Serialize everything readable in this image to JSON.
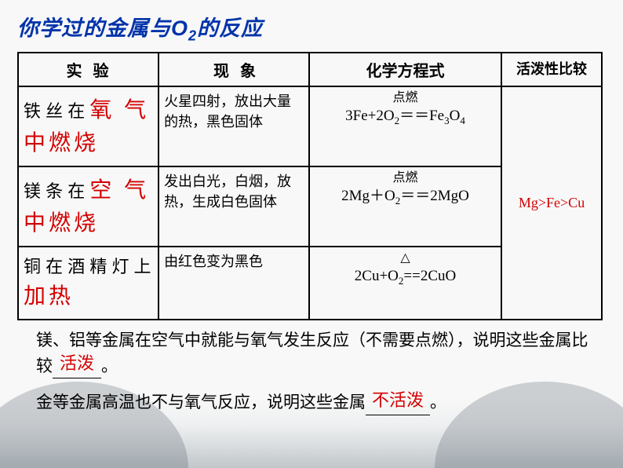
{
  "title_prefix": "你学过的金属与O",
  "title_sub": "2",
  "title_suffix": "的反应",
  "headers": {
    "h1": "实验",
    "h2": "现象",
    "h3": "化学方程式",
    "h4": "活泼性比较"
  },
  "rows": [
    {
      "exp_a": "铁 丝 在 ",
      "exp_red1": "氧 气",
      "exp_b": "",
      "exp_red2": "中燃烧",
      "phenom": "火星四射，放出大量的热，黑色固体",
      "cond": "点燃",
      "eq_html": "3Fe+2O<sub>2</sub>＝＝Fe<sub>3</sub>O<sub>4</sub>"
    },
    {
      "exp_a": "镁 条 在 ",
      "exp_red1": "空 气",
      "exp_b": "",
      "exp_red2": "中燃烧",
      "phenom": "发出白光，白烟，放热，生成白色固体",
      "cond": "点燃",
      "eq_html": "2Mg＋O<sub>2</sub>＝＝2MgO"
    },
    {
      "exp_a": "铜 在 酒 精 灯 上",
      "exp_red1": "",
      "exp_b": "",
      "exp_red2": "加热",
      "phenom": "由红色变为黑色",
      "cond": "△",
      "eq_html": "2Cu+O<sub>2</sub>==2CuO"
    }
  ],
  "activity": "Mg>Fe>Cu",
  "p1_a": "镁、铝等金属在空气中就能与氧气发生反应（不需要点燃），说明这些金属比较",
  "p1_ans": "活泼",
  "p1_b": "。",
  "p2_a": "金等金属高温也不与氧气反应，说明这些金属",
  "p2_ans": "不活泼",
  "p2_b": "。"
}
